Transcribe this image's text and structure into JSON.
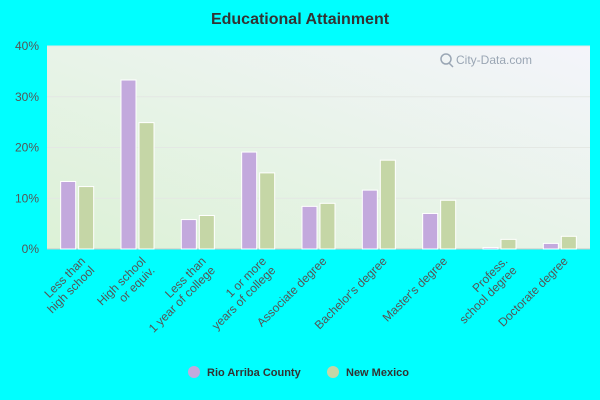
{
  "watermark": "City-Data.com",
  "colors": {
    "page_background": "#00ffff",
    "series_1": "#c3a9dd",
    "series_2": "#c5d6a6",
    "plot_gradient_top": "#f4f4fb",
    "plot_gradient_bottom": "#dcf2d6"
  },
  "chart_data": {
    "type": "bar",
    "title": "Educational Attainment",
    "xlabel": "",
    "ylabel": "",
    "ylim": [
      0,
      40
    ],
    "yticks": [
      "0%",
      "10%",
      "20%",
      "30%",
      "40%"
    ],
    "ytick_values": [
      0,
      10,
      20,
      30,
      40
    ],
    "grid": true,
    "legend_position": "bottom-center",
    "categories": [
      [
        "Less than",
        "high school"
      ],
      [
        "High school",
        "or equiv."
      ],
      [
        "Less than",
        "1 year of college"
      ],
      [
        "1 or more",
        "years of college"
      ],
      [
        "Associate degree"
      ],
      [
        "Bachelor's degree"
      ],
      [
        "Master's degree"
      ],
      [
        "Profess.",
        "school degree"
      ],
      [
        "Doctorate degree"
      ]
    ],
    "series": [
      {
        "name": "Rio Arriba County",
        "values": [
          13.3,
          33.3,
          5.8,
          19.1,
          8.4,
          11.6,
          7.0,
          0.3,
          1.1
        ]
      },
      {
        "name": "New Mexico",
        "values": [
          12.3,
          24.9,
          6.6,
          15.0,
          9.0,
          17.5,
          9.6,
          1.9,
          2.5
        ]
      }
    ]
  }
}
